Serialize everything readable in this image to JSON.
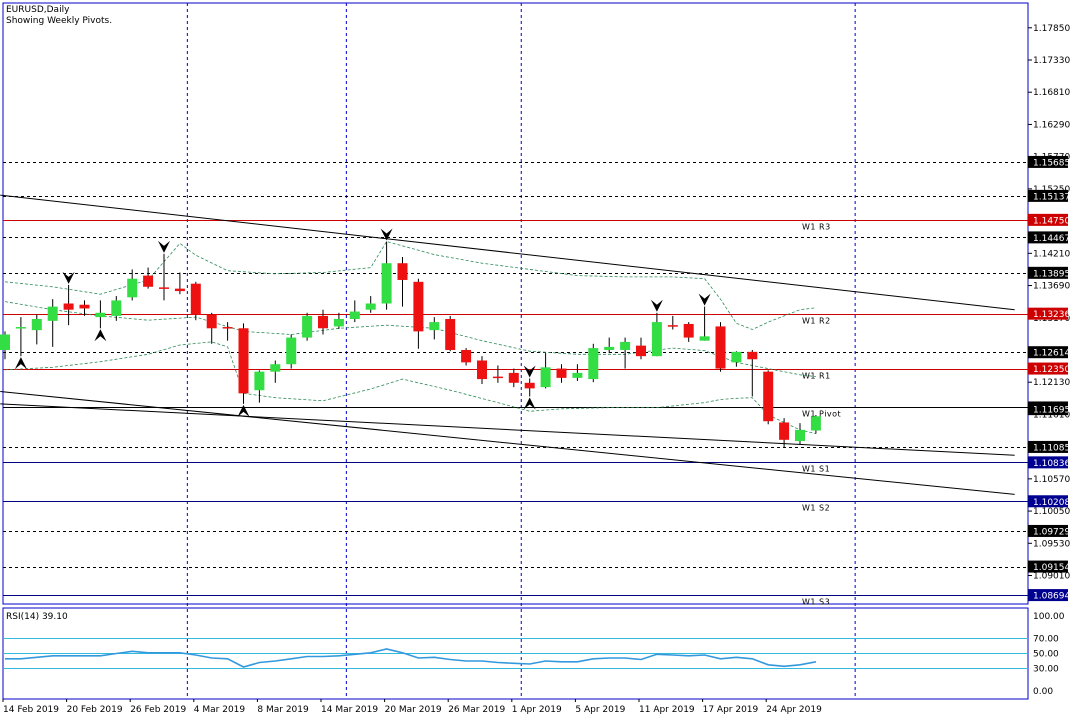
{
  "header": {
    "symbol": "EURUSD,Daily",
    "subtitle": "Showing Weekly Pivots."
  },
  "rsi_header": "RSI(14) 39.10",
  "colors": {
    "bull": "#33dd44",
    "bear": "#ee1111",
    "frame": "#0000cc",
    "pivot_level": "#cc0000",
    "support_level": "#000080",
    "rsi_line": "#3399dd",
    "rsi_levels": "#33bbdd",
    "bands": "#2e8b57"
  },
  "chart_data": [
    {
      "type": "candlestick",
      "title": "EURUSD,Daily",
      "ylim": [
        1.0855,
        1.1825
      ],
      "y_ticks": [
        "1.17850",
        "1.17330",
        "1.16810",
        "1.16290",
        "1.15770",
        "1.15250",
        "1.14210",
        "1.13690",
        "1.13170",
        "1.12130",
        "1.11610",
        "1.10570",
        "1.10050",
        "1.09530",
        "1.09010"
      ],
      "x_ticks": [
        {
          "label": "14 Feb 2019",
          "index": 0
        },
        {
          "label": "20 Feb 2019",
          "index": 4
        },
        {
          "label": "26 Feb 2019",
          "index": 8
        },
        {
          "label": "4 Mar 2019",
          "index": 12
        },
        {
          "label": "8 Mar 2019",
          "index": 16
        },
        {
          "label": "14 Mar 2019",
          "index": 20
        },
        {
          "label": "20 Mar 2019",
          "index": 24
        },
        {
          "label": "26 Mar 2019",
          "index": 28
        },
        {
          "label": "1 Apr 2019",
          "index": 32
        },
        {
          "label": "5 Apr 2019",
          "index": 36
        },
        {
          "label": "11 Apr 2019",
          "index": 40
        },
        {
          "label": "17 Apr 2019",
          "index": 44
        },
        {
          "label": "24 Apr 2019",
          "index": 48
        }
      ],
      "week_separators": [
        11,
        21,
        32,
        53
      ],
      "candles": [
        {
          "o": 1.1265,
          "h": 1.1295,
          "l": 1.125,
          "c": 1.129
        },
        {
          "o": 1.13,
          "h": 1.1318,
          "l": 1.1255,
          "c": 1.1302
        },
        {
          "o": 1.1297,
          "h": 1.1322,
          "l": 1.1274,
          "c": 1.1315
        },
        {
          "o": 1.1312,
          "h": 1.1347,
          "l": 1.127,
          "c": 1.1335
        },
        {
          "o": 1.134,
          "h": 1.137,
          "l": 1.1305,
          "c": 1.133
        },
        {
          "o": 1.1338,
          "h": 1.1345,
          "l": 1.132,
          "c": 1.1332
        },
        {
          "o": 1.1318,
          "h": 1.1345,
          "l": 1.13,
          "c": 1.1325
        },
        {
          "o": 1.132,
          "h": 1.1352,
          "l": 1.1312,
          "c": 1.1345
        },
        {
          "o": 1.135,
          "h": 1.1395,
          "l": 1.1345,
          "c": 1.138
        },
        {
          "o": 1.1385,
          "h": 1.1398,
          "l": 1.1364,
          "c": 1.1367
        },
        {
          "o": 1.1366,
          "h": 1.142,
          "l": 1.1345,
          "c": 1.1364
        },
        {
          "o": 1.1364,
          "h": 1.139,
          "l": 1.1355,
          "c": 1.136
        },
        {
          "o": 1.1372,
          "h": 1.1375,
          "l": 1.1313,
          "c": 1.1322
        },
        {
          "o": 1.1322,
          "h": 1.1325,
          "l": 1.1275,
          "c": 1.13
        },
        {
          "o": 1.1302,
          "h": 1.131,
          "l": 1.128,
          "c": 1.13
        },
        {
          "o": 1.13,
          "h": 1.1308,
          "l": 1.1178,
          "c": 1.1195
        },
        {
          "o": 1.12,
          "h": 1.1232,
          "l": 1.118,
          "c": 1.123
        },
        {
          "o": 1.123,
          "h": 1.1248,
          "l": 1.1212,
          "c": 1.1242
        },
        {
          "o": 1.1242,
          "h": 1.129,
          "l": 1.1235,
          "c": 1.1285
        },
        {
          "o": 1.1285,
          "h": 1.1325,
          "l": 1.128,
          "c": 1.132
        },
        {
          "o": 1.132,
          "h": 1.133,
          "l": 1.129,
          "c": 1.13
        },
        {
          "o": 1.1303,
          "h": 1.1325,
          "l": 1.1299,
          "c": 1.1315
        },
        {
          "o": 1.1315,
          "h": 1.1345,
          "l": 1.131,
          "c": 1.1327
        },
        {
          "o": 1.133,
          "h": 1.1352,
          "l": 1.1325,
          "c": 1.134
        },
        {
          "o": 1.134,
          "h": 1.144,
          "l": 1.133,
          "c": 1.1405
        },
        {
          "o": 1.1405,
          "h": 1.1415,
          "l": 1.1335,
          "c": 1.1378
        },
        {
          "o": 1.1375,
          "h": 1.138,
          "l": 1.1267,
          "c": 1.1295
        },
        {
          "o": 1.1297,
          "h": 1.1318,
          "l": 1.1282,
          "c": 1.131
        },
        {
          "o": 1.1315,
          "h": 1.132,
          "l": 1.1263,
          "c": 1.1265
        },
        {
          "o": 1.1265,
          "h": 1.1268,
          "l": 1.124,
          "c": 1.1245
        },
        {
          "o": 1.1248,
          "h": 1.1255,
          "l": 1.121,
          "c": 1.1218
        },
        {
          "o": 1.1222,
          "h": 1.124,
          "l": 1.1212,
          "c": 1.122
        },
        {
          "o": 1.1228,
          "h": 1.1235,
          "l": 1.1205,
          "c": 1.1212
        },
        {
          "o": 1.1212,
          "h": 1.1219,
          "l": 1.119,
          "c": 1.1203
        },
        {
          "o": 1.1205,
          "h": 1.126,
          "l": 1.1203,
          "c": 1.1237
        },
        {
          "o": 1.1235,
          "h": 1.1242,
          "l": 1.1212,
          "c": 1.122
        },
        {
          "o": 1.122,
          "h": 1.1242,
          "l": 1.1215,
          "c": 1.1228
        },
        {
          "o": 1.1218,
          "h": 1.1275,
          "l": 1.1213,
          "c": 1.1268
        },
        {
          "o": 1.1265,
          "h": 1.1285,
          "l": 1.126,
          "c": 1.127
        },
        {
          "o": 1.1265,
          "h": 1.1285,
          "l": 1.1235,
          "c": 1.1278
        },
        {
          "o": 1.1272,
          "h": 1.1285,
          "l": 1.125,
          "c": 1.1255
        },
        {
          "o": 1.1255,
          "h": 1.1325,
          "l": 1.1255,
          "c": 1.131
        },
        {
          "o": 1.1305,
          "h": 1.132,
          "l": 1.1298,
          "c": 1.1303
        },
        {
          "o": 1.1307,
          "h": 1.131,
          "l": 1.1278,
          "c": 1.1285
        },
        {
          "o": 1.128,
          "h": 1.1335,
          "l": 1.128,
          "c": 1.1287
        },
        {
          "o": 1.1303,
          "h": 1.131,
          "l": 1.123,
          "c": 1.1235
        },
        {
          "o": 1.1245,
          "h": 1.1263,
          "l": 1.1238,
          "c": 1.1262
        },
        {
          "o": 1.1262,
          "h": 1.1265,
          "l": 1.119,
          "c": 1.125
        },
        {
          "o": 1.123,
          "h": 1.1232,
          "l": 1.1145,
          "c": 1.115
        },
        {
          "o": 1.1148,
          "h": 1.1155,
          "l": 1.1108,
          "c": 1.112
        },
        {
          "o": 1.1118,
          "h": 1.1147,
          "l": 1.1112,
          "c": 1.1136
        },
        {
          "o": 1.1135,
          "h": 1.116,
          "l": 1.113,
          "c": 1.1158
        }
      ],
      "fractals_up": [
        4,
        10,
        24,
        33,
        41,
        44
      ],
      "fractals_down": [
        1,
        6,
        15,
        33
      ],
      "pivot_lines": [
        {
          "value": 1.1475,
          "name": "W1 R3"
        },
        {
          "value": 1.13236,
          "name": "W1 R2"
        },
        {
          "value": 1.1235,
          "name": "W1 R1"
        },
        {
          "value": 1.11722,
          "name": "W1 Pivot"
        },
        {
          "value": 1.10836,
          "name": "W1 S1"
        },
        {
          "value": 1.10208,
          "name": "W1 S2"
        },
        {
          "value": 1.08694,
          "name": "W1 S3"
        }
      ],
      "price_labels": [
        "1.15685",
        "1.15137",
        "1.14750",
        "1.14467",
        "1.13895",
        "1.13236",
        "1.12614",
        "1.12350",
        "1.11722",
        "1.11695",
        "1.11085",
        "1.10836",
        "1.10208",
        "1.09729",
        "1.09154",
        "1.08694"
      ],
      "dotted_levels": [
        1.15685,
        1.15137,
        1.14467,
        1.13895,
        1.12614,
        1.11085,
        1.09729,
        1.09154
      ],
      "trendlines": [
        {
          "i1": -0.3,
          "p1": 1.1515,
          "i2": 63.5,
          "p2": 1.133
        },
        {
          "i1": -0.3,
          "p1": 1.1198,
          "i2": 63.5,
          "p2": 1.1032
        },
        {
          "i1": -0.3,
          "p1": 1.1178,
          "i2": 63.5,
          "p2": 1.1095
        }
      ],
      "upper_band": [
        [
          0,
          1.1375
        ],
        [
          3,
          1.1367
        ],
        [
          6,
          1.1355
        ],
        [
          9,
          1.1378
        ],
        [
          11,
          1.1437
        ],
        [
          12,
          1.1418
        ],
        [
          14,
          1.1393
        ],
        [
          17,
          1.1388
        ],
        [
          20,
          1.139
        ],
        [
          23,
          1.1398
        ],
        [
          24,
          1.144
        ],
        [
          27,
          1.1419
        ],
        [
          30,
          1.1405
        ],
        [
          33,
          1.1395
        ],
        [
          36,
          1.1385
        ],
        [
          39,
          1.1383
        ],
        [
          42,
          1.1383
        ],
        [
          44,
          1.138
        ],
        [
          45,
          1.1347
        ],
        [
          46,
          1.1308
        ],
        [
          47,
          1.1298
        ],
        [
          48,
          1.131
        ],
        [
          50,
          1.133
        ],
        [
          51,
          1.1333
        ]
      ],
      "lower_band": [
        [
          0,
          1.1233
        ],
        [
          3,
          1.1237
        ],
        [
          6,
          1.1246
        ],
        [
          9,
          1.1258
        ],
        [
          11,
          1.1273
        ],
        [
          13,
          1.1278
        ],
        [
          14,
          1.127
        ],
        [
          15,
          1.1195
        ],
        [
          17,
          1.1188
        ],
        [
          20,
          1.1183
        ],
        [
          23,
          1.1202
        ],
        [
          25,
          1.1218
        ],
        [
          28,
          1.12
        ],
        [
          31,
          1.118
        ],
        [
          33,
          1.1166
        ],
        [
          35,
          1.117
        ],
        [
          38,
          1.1172
        ],
        [
          41,
          1.1172
        ],
        [
          44,
          1.118
        ],
        [
          45,
          1.1185
        ],
        [
          46,
          1.1187
        ],
        [
          47,
          1.1188
        ],
        [
          48,
          1.116
        ],
        [
          50,
          1.1136
        ],
        [
          51,
          1.113
        ]
      ],
      "middle_band": [
        [
          0,
          1.1343
        ],
        [
          3,
          1.133
        ],
        [
          6,
          1.132
        ],
        [
          9,
          1.1313
        ],
        [
          12,
          1.1318
        ],
        [
          15,
          1.1295
        ],
        [
          18,
          1.129
        ],
        [
          21,
          1.13
        ],
        [
          24,
          1.1305
        ],
        [
          27,
          1.13
        ],
        [
          30,
          1.128
        ],
        [
          33,
          1.1263
        ],
        [
          36,
          1.1258
        ],
        [
          39,
          1.1258
        ],
        [
          42,
          1.1268
        ],
        [
          44,
          1.1264
        ],
        [
          46,
          1.1245
        ],
        [
          48,
          1.1235
        ],
        [
          50,
          1.1225
        ],
        [
          51,
          1.1222
        ]
      ]
    },
    {
      "type": "line",
      "title": "RSI(14) 39.10",
      "ylim": [
        0,
        100
      ],
      "levels": [
        30,
        50,
        70
      ],
      "y_ticks": [
        "100.00",
        "70.00",
        "50.00",
        "30.00",
        "0.00"
      ],
      "values": [
        43,
        43,
        45,
        47,
        47,
        47,
        47,
        50,
        53,
        51,
        51,
        51,
        48,
        44,
        43,
        32,
        38,
        40,
        43,
        46,
        46,
        47,
        49,
        51,
        56,
        51,
        44,
        45,
        42,
        40,
        40,
        38,
        37,
        36,
        40,
        39,
        39,
        43,
        44,
        44,
        42,
        49,
        48,
        47,
        48,
        43,
        45,
        43,
        35,
        33,
        35,
        39
      ]
    }
  ]
}
